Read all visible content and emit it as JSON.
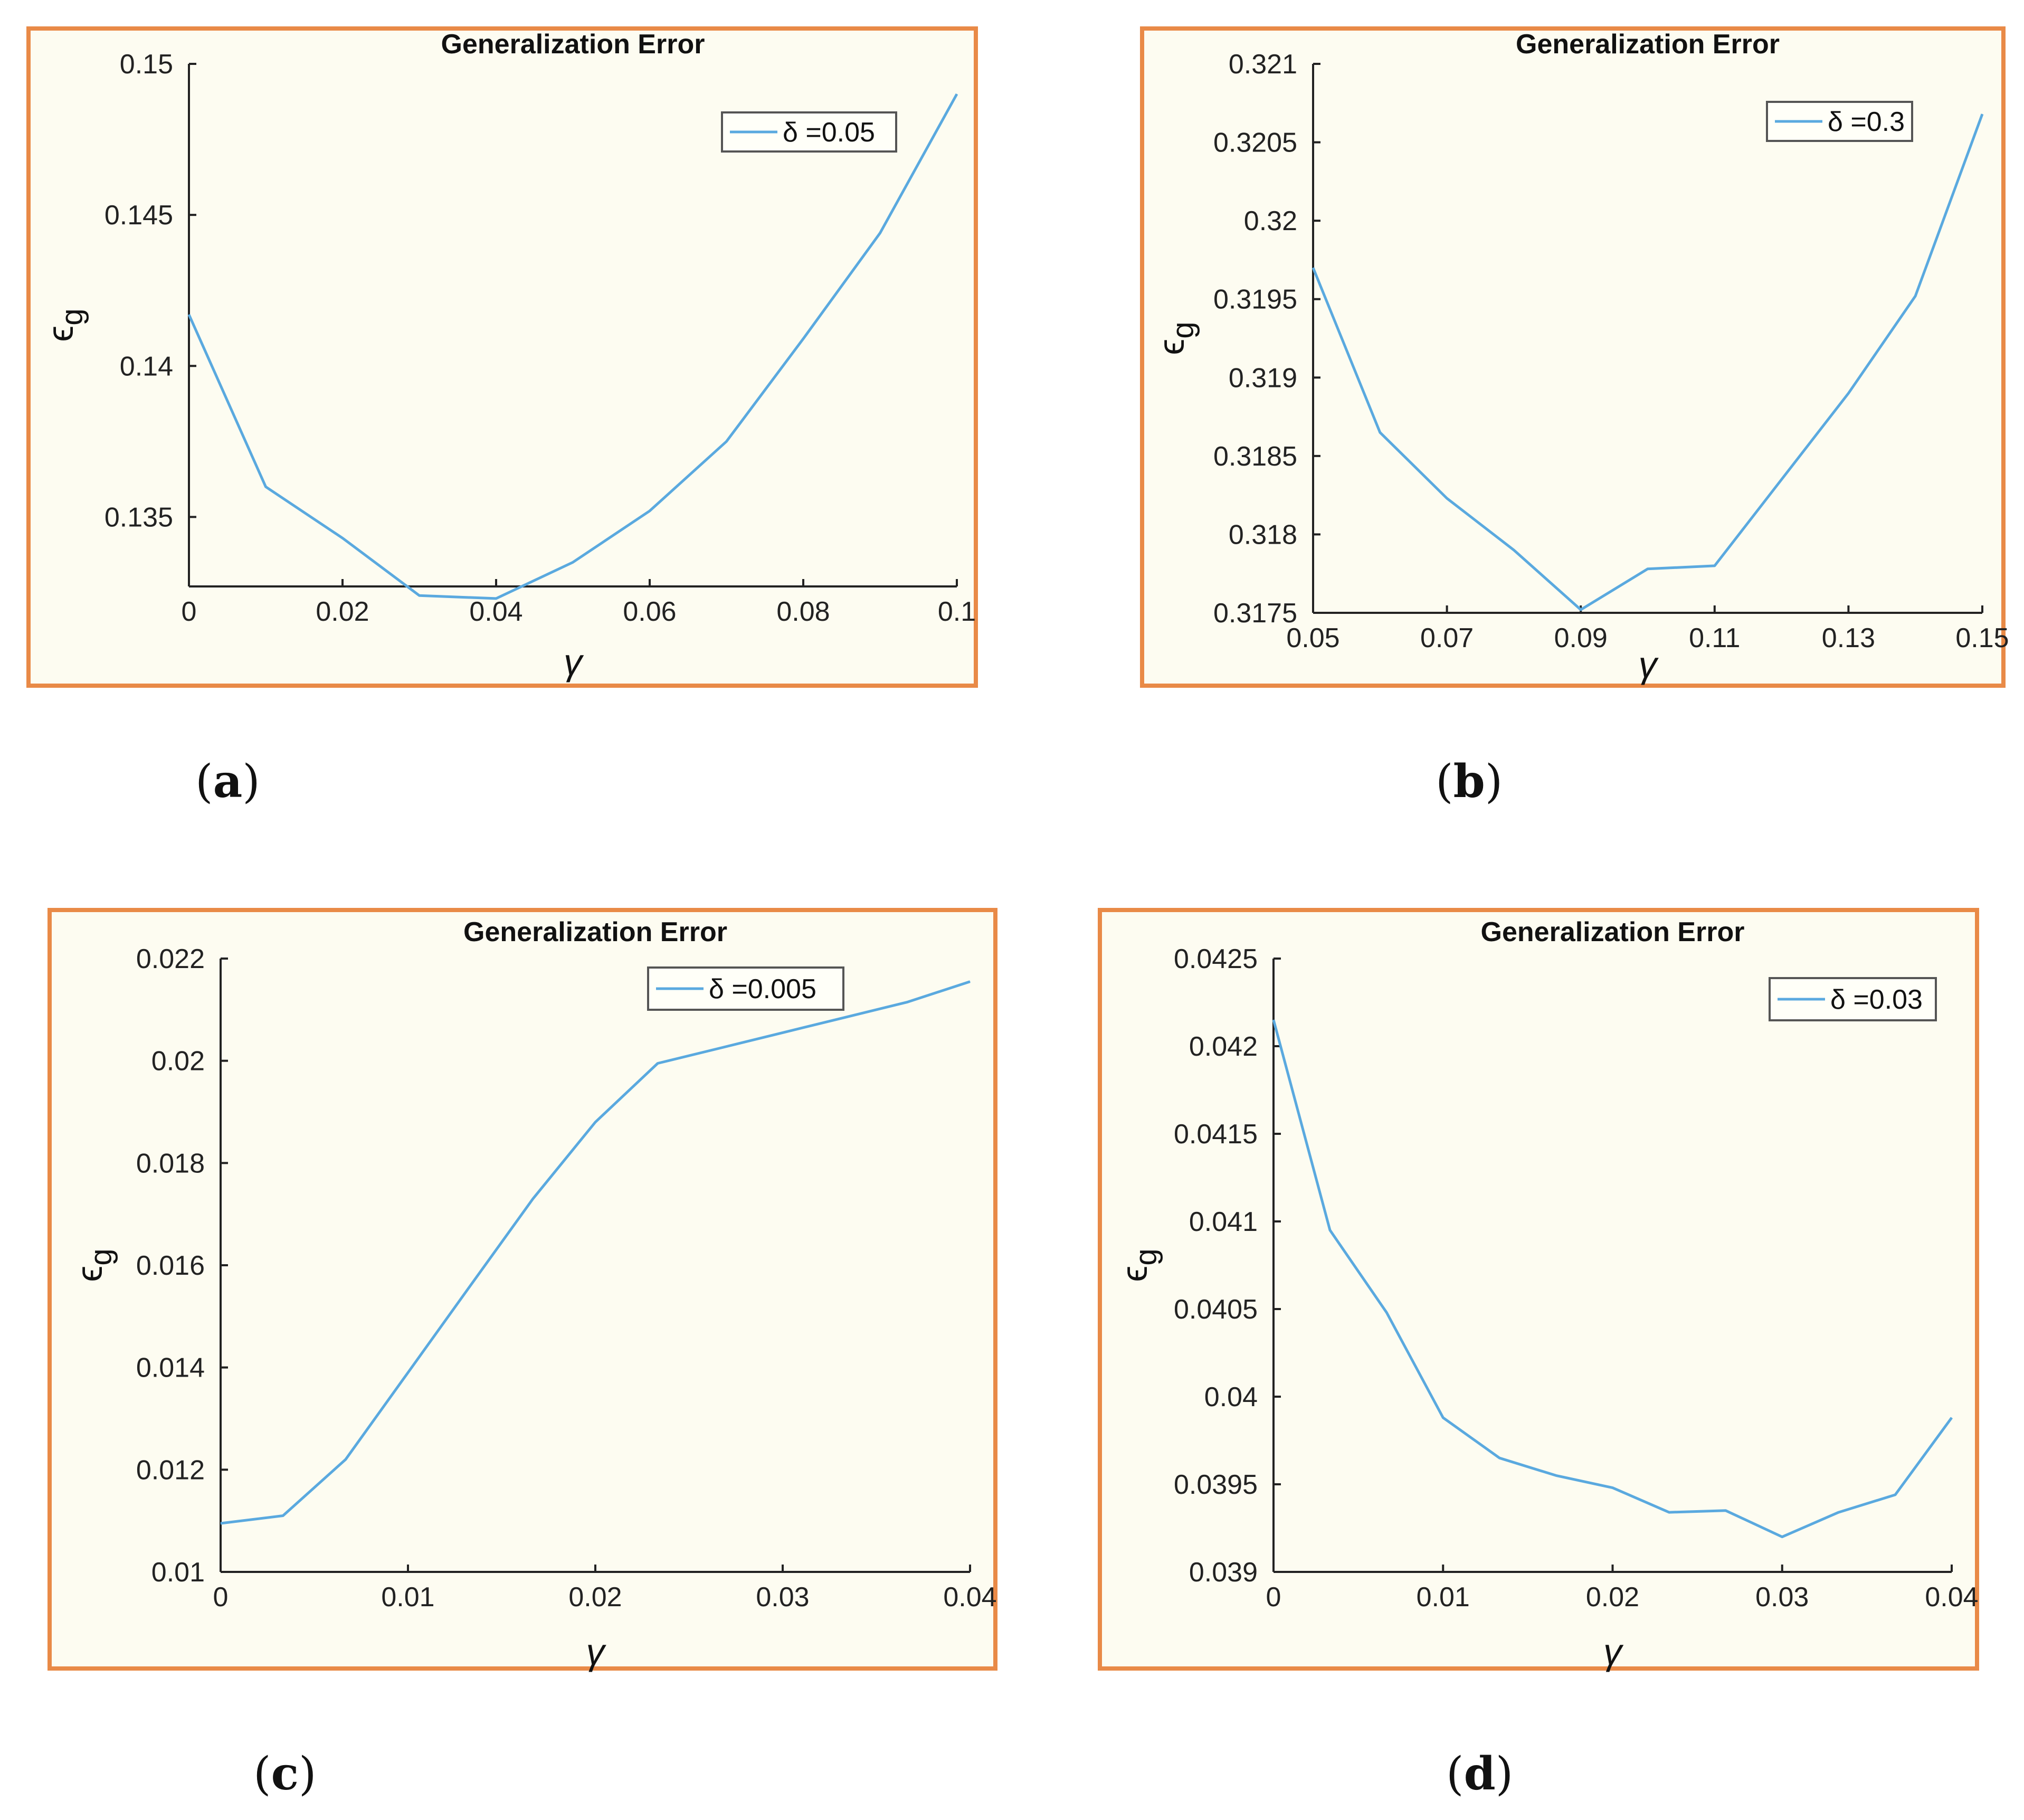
{
  "colors": {
    "line": "#5aa9df",
    "axis": "#222222",
    "border": "#e98a47",
    "background": "#fdfcf1"
  },
  "captions": [
    "a",
    "b",
    "c",
    "d"
  ],
  "chart_data": [
    {
      "type": "line",
      "title": "Generalization Error",
      "xlabel": "γ",
      "ylabel": "ϵ",
      "ylabel_sub": "g",
      "legend": {
        "label": "δ =0.05",
        "position": "top-right"
      },
      "xlim": [
        0,
        0.1
      ],
      "ylim": [
        0.1327,
        0.15
      ],
      "xticks": [
        0,
        0.02,
        0.04,
        0.06,
        0.08,
        0.1
      ],
      "xticklabels": [
        "0",
        "0.02",
        "0.04",
        "0.06",
        "0.08",
        "0.1"
      ],
      "yticks": [
        0.135,
        0.14,
        0.145,
        0.15
      ],
      "yticklabels": [
        "0.135",
        "0.14",
        "0.145",
        "0.15"
      ],
      "x": [
        0,
        0.01,
        0.02,
        0.03,
        0.04,
        0.05,
        0.06,
        0.07,
        0.08,
        0.09,
        0.1
      ],
      "y": [
        0.1417,
        0.136,
        0.1343,
        0.1324,
        0.1323,
        0.1335,
        0.1352,
        0.1375,
        0.1409,
        0.1444,
        0.149
      ]
    },
    {
      "type": "line",
      "title": "Generalization Error",
      "xlabel": "γ",
      "ylabel": "ϵ",
      "ylabel_sub": "g",
      "legend": {
        "label": "δ =0.3",
        "position": "top-right"
      },
      "xlim": [
        0.05,
        0.15
      ],
      "ylim": [
        0.3175,
        0.321
      ],
      "xticks": [
        0.05,
        0.07,
        0.09,
        0.11,
        0.13,
        0.15
      ],
      "xticklabels": [
        "0.05",
        "0.07",
        "0.09",
        "0.11",
        "0.13",
        "0.15"
      ],
      "yticks": [
        0.3175,
        0.318,
        0.3185,
        0.319,
        0.3195,
        0.32,
        0.3205,
        0.321
      ],
      "yticklabels": [
        "0.3175",
        "0.318",
        "0.3185",
        "0.319",
        "0.3195",
        "0.32",
        "0.3205",
        "0.321"
      ],
      "x": [
        0.05,
        0.06,
        0.07,
        0.08,
        0.09,
        0.1,
        0.11,
        0.12,
        0.13,
        0.14,
        0.15
      ],
      "y": [
        0.3197,
        0.31865,
        0.31823,
        0.3179,
        0.31752,
        0.31778,
        0.3178,
        0.31835,
        0.3189,
        0.31952,
        0.32068
      ]
    },
    {
      "type": "line",
      "title": "Generalization Error",
      "xlabel": "γ",
      "ylabel": "ϵ",
      "ylabel_sub": "g",
      "legend": {
        "label": "δ =0.005",
        "position": "top-right"
      },
      "xlim": [
        0,
        0.04
      ],
      "ylim": [
        0.01,
        0.022
      ],
      "xticks": [
        0,
        0.01,
        0.02,
        0.03,
        0.04
      ],
      "xticklabels": [
        "0",
        "0.01",
        "0.02",
        "0.03",
        "0.04"
      ],
      "yticks": [
        0.01,
        0.012,
        0.014,
        0.016,
        0.018,
        0.02,
        0.022
      ],
      "yticklabels": [
        "0.01",
        "0.012",
        "0.014",
        "0.016",
        "0.018",
        "0.02",
        "0.022"
      ],
      "x": [
        0,
        0.00333,
        0.00667,
        0.01,
        0.01333,
        0.01667,
        0.02,
        0.02333,
        0.02667,
        0.03,
        0.03333,
        0.03667,
        0.04
      ],
      "y": [
        0.01095,
        0.0111,
        0.0122,
        0.0139,
        0.0156,
        0.0173,
        0.0188,
        0.01995,
        0.02025,
        0.02055,
        0.02085,
        0.02115,
        0.02155
      ]
    },
    {
      "type": "line",
      "title": "Generalization Error",
      "xlabel": "γ",
      "ylabel": "ϵ",
      "ylabel_sub": "g",
      "legend": {
        "label": "δ =0.03",
        "position": "top-right"
      },
      "xlim": [
        0,
        0.04
      ],
      "ylim": [
        0.039,
        0.0425
      ],
      "xticks": [
        0,
        0.01,
        0.02,
        0.03,
        0.04
      ],
      "xticklabels": [
        "0",
        "0.01",
        "0.02",
        "0.03",
        "0.04"
      ],
      "yticks": [
        0.039,
        0.0395,
        0.04,
        0.0405,
        0.041,
        0.0415,
        0.042,
        0.0425
      ],
      "yticklabels": [
        "0.039",
        "0.0395",
        "0.04",
        "0.0405",
        "0.041",
        "0.0415",
        "0.042",
        "0.0425"
      ],
      "x": [
        0,
        0.00333,
        0.00667,
        0.01,
        0.01333,
        0.01667,
        0.02,
        0.02333,
        0.02667,
        0.03,
        0.03333,
        0.03667,
        0.04
      ],
      "y": [
        0.04215,
        0.04095,
        0.04048,
        0.03988,
        0.03965,
        0.03955,
        0.03948,
        0.03934,
        0.03935,
        0.0392,
        0.03934,
        0.03944,
        0.03988
      ]
    }
  ]
}
